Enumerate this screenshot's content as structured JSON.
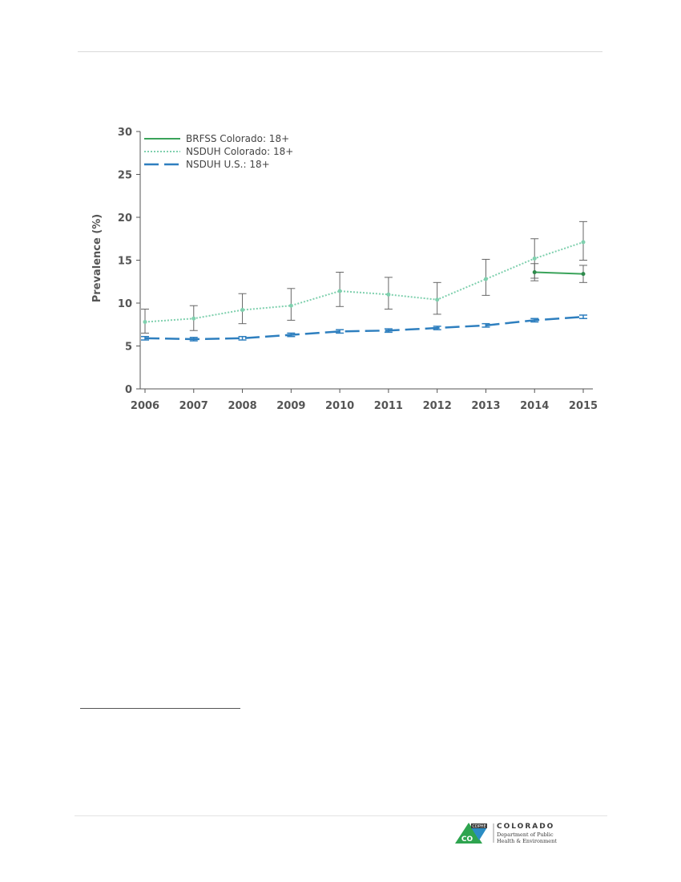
{
  "chart_data": {
    "type": "line",
    "title": "",
    "xlabel": "",
    "ylabel": "Prevalence (%)",
    "x": [
      2006,
      2007,
      2008,
      2009,
      2010,
      2011,
      2012,
      2013,
      2014,
      2015
    ],
    "x_tick_labels": [
      "2006",
      "2007",
      "2008",
      "2009",
      "2010",
      "2011",
      "2012",
      "2013",
      "2014",
      "2015"
    ],
    "ylim": [
      0,
      30
    ],
    "y_ticks": [
      0,
      5,
      10,
      15,
      20,
      25,
      30
    ],
    "y_tick_labels": [
      "0",
      "5",
      "10",
      "15",
      "20",
      "25",
      "30"
    ],
    "grid": false,
    "legend_position": "top-left",
    "series": [
      {
        "name": "BRFSS Colorado: 18+",
        "style": "solid",
        "color": "#3aa35a",
        "values": [
          null,
          null,
          null,
          null,
          null,
          null,
          null,
          null,
          13.6,
          13.4
        ],
        "ci_low": [
          null,
          null,
          null,
          null,
          null,
          null,
          null,
          null,
          12.6,
          12.4
        ],
        "ci_high": [
          null,
          null,
          null,
          null,
          null,
          null,
          null,
          null,
          14.6,
          14.4
        ]
      },
      {
        "name": "NSDUH Colorado: 18+",
        "style": "dotted",
        "color": "#7fd0ae",
        "values": [
          7.8,
          8.2,
          9.2,
          9.7,
          11.4,
          11.0,
          10.4,
          12.8,
          15.2,
          17.1
        ],
        "ci_low": [
          6.5,
          6.8,
          7.6,
          8.0,
          9.6,
          9.3,
          8.7,
          10.9,
          12.9,
          15.0
        ],
        "ci_high": [
          9.3,
          9.7,
          11.1,
          11.7,
          13.6,
          13.0,
          12.4,
          15.1,
          17.5,
          19.5
        ]
      },
      {
        "name": "NSDUH U.S.: 18+",
        "style": "dashed",
        "color": "#2e7fbf",
        "values": [
          5.9,
          5.8,
          5.9,
          6.3,
          6.7,
          6.8,
          7.1,
          7.4,
          8.0,
          8.4
        ],
        "ci_low": [
          5.7,
          5.6,
          5.7,
          6.1,
          6.5,
          6.6,
          6.9,
          7.2,
          7.8,
          8.2
        ],
        "ci_high": [
          6.1,
          6.0,
          6.1,
          6.5,
          6.9,
          7.0,
          7.3,
          7.6,
          8.2,
          8.6
        ]
      }
    ]
  },
  "footer": {
    "logo_badge": "CDPHE",
    "logo_mark": "CO",
    "logo_name": "COLORADO",
    "logo_dept_line1": "Department of Public",
    "logo_dept_line2": "Health & Environment"
  },
  "colors": {
    "axis": "#555555",
    "error_bar": "#666666",
    "logo_green": "#2ea44f",
    "logo_blue": "#2b8cc4"
  }
}
